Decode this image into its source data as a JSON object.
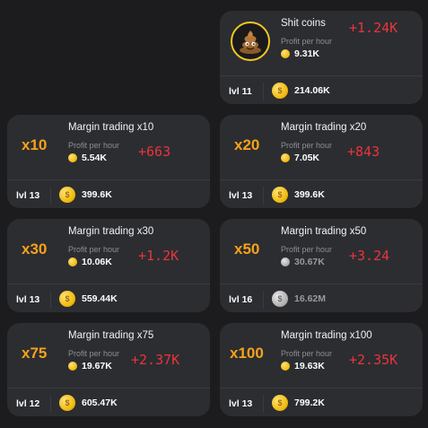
{
  "labels": {
    "profit_per_hour": "Profit per hour"
  },
  "cards": [
    {
      "id": "shit-coins",
      "title": "Shit coins",
      "profit": "9.31K",
      "delta": "+1.24K",
      "level": "lvl 11",
      "cost": "214.06K",
      "avatar_icon": "poop-emoji-icon"
    },
    {
      "id": "x10",
      "title": "Margin trading x10",
      "multiplier": "x10",
      "profit": "5.54K",
      "delta": "+663",
      "level": "lvl 13",
      "cost": "399.6K"
    },
    {
      "id": "x20",
      "title": "Margin trading x20",
      "multiplier": "x20",
      "profit": "7.05K",
      "delta": "+843",
      "level": "lvl 13",
      "cost": "399.6K"
    },
    {
      "id": "x30",
      "title": "Margin trading x30",
      "multiplier": "x30",
      "profit": "10.06K",
      "delta": "+1.2K",
      "level": "lvl 13",
      "cost": "559.44K"
    },
    {
      "id": "x50",
      "title": "Margin trading x50",
      "multiplier": "x50",
      "profit": "30.67K",
      "delta": "+3.24",
      "level": "lvl 16",
      "cost": "16.62M",
      "disabled": true
    },
    {
      "id": "x75",
      "title": "Margin trading x75",
      "multiplier": "x75",
      "profit": "19.67K",
      "delta": "+2.37K",
      "level": "lvl 12",
      "cost": "605.47K"
    },
    {
      "id": "x100",
      "title": "Margin trading x100",
      "multiplier": "x100",
      "profit": "19.63K",
      "delta": "+2.35K",
      "level": "lvl 13",
      "cost": "799.2K"
    }
  ],
  "colors": {
    "accent": "#f7a21b",
    "delta": "#e8353c",
    "card_bg": "#2c2d31",
    "page_bg": "#1c1c1e",
    "coin": "#f0b90b"
  }
}
